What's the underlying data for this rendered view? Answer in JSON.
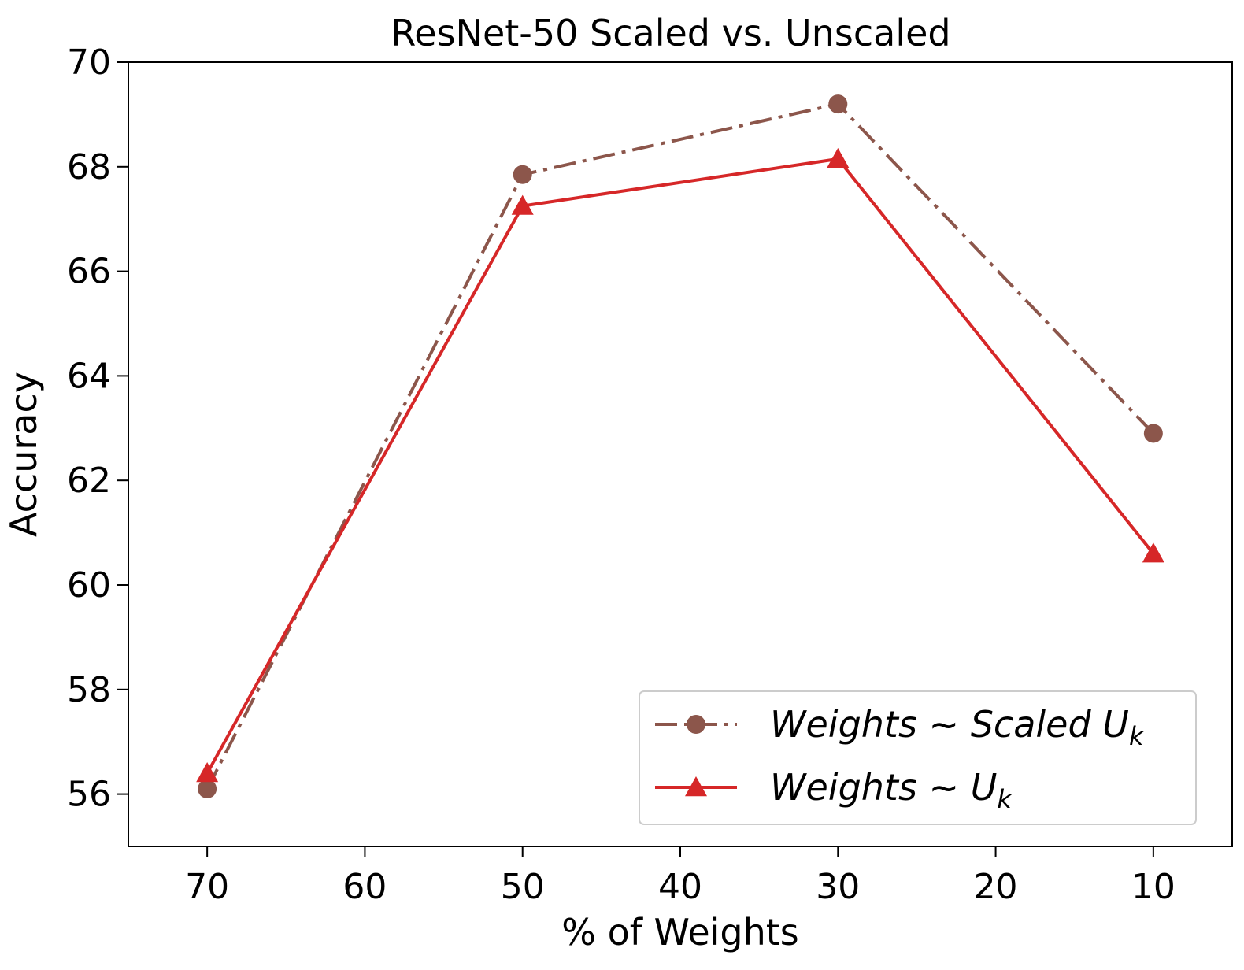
{
  "chart_data": {
    "type": "line",
    "title": "ResNet-50 Scaled vs. Unscaled",
    "xlabel": "% of Weights",
    "ylabel": "Accuracy",
    "x": [
      70,
      50,
      30,
      10
    ],
    "xlim": [
      75,
      5
    ],
    "ylim": [
      55,
      70
    ],
    "xticks": [
      70,
      60,
      50,
      40,
      30,
      20,
      10
    ],
    "yticks": [
      56,
      58,
      60,
      62,
      64,
      66,
      68,
      70
    ],
    "grid": false,
    "legend_position": "lower-right",
    "series": [
      {
        "name": "Weights ~ Scaled U",
        "name_subscript": "k",
        "values": [
          56.1,
          67.85,
          69.2,
          62.9
        ],
        "color": "#8c564b",
        "line_style": "dashdot",
        "marker": "circle"
      },
      {
        "name": "Weights ~ U",
        "name_subscript": "k",
        "values": [
          56.4,
          67.25,
          68.15,
          60.6
        ],
        "color": "#d62728",
        "line_style": "solid",
        "marker": "triangle"
      }
    ]
  }
}
